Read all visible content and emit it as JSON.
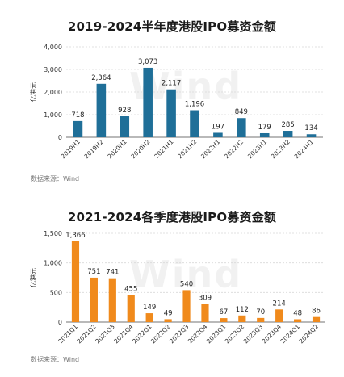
{
  "source_label": "数据来源：Wind",
  "watermark": "Wind",
  "chart_data": [
    {
      "type": "bar",
      "title": "2019-2024半年度港股IPO募资金额",
      "ylabel": "亿港元",
      "xlabel": "",
      "ylim": [
        0,
        4000
      ],
      "yticks": [
        0,
        1000,
        2000,
        3000,
        4000
      ],
      "ytick_labels": [
        "0",
        "1,000",
        "2,000",
        "3,000",
        "4,000"
      ],
      "grid": true,
      "color": "#1f6f98",
      "categories": [
        "2019H1",
        "2019H2",
        "2020H1",
        "2020H2",
        "2021H1",
        "2021H2",
        "2022H1",
        "2022H2",
        "2023H1",
        "2023H2",
        "2024H1"
      ],
      "values": [
        718,
        2364,
        928,
        3073,
        2117,
        1196,
        197,
        849,
        179,
        285,
        134
      ],
      "value_labels": [
        "718",
        "2,364",
        "928",
        "3,073",
        "2,117",
        "1,196",
        "197",
        "849",
        "179",
        "285",
        "134"
      ]
    },
    {
      "type": "bar",
      "title": "2021-2024各季度港股IPO募资金额",
      "ylabel": "亿港元",
      "xlabel": "",
      "ylim": [
        0,
        1500
      ],
      "yticks": [
        0,
        500,
        1000,
        1500
      ],
      "ytick_labels": [
        "0",
        "500",
        "1,000",
        "1,500"
      ],
      "grid": true,
      "color": "#f08a1c",
      "categories": [
        "2021Q1",
        "2021Q2",
        "2021Q3",
        "2021Q4",
        "2022Q1",
        "2022Q2",
        "2022Q3",
        "2022Q4",
        "2023Q1",
        "2023Q2",
        "2023Q3",
        "2023Q4",
        "2024Q1",
        "2024Q2"
      ],
      "values": [
        1366,
        751,
        741,
        455,
        149,
        49,
        540,
        309,
        67,
        112,
        70,
        214,
        48,
        86
      ],
      "value_labels": [
        "1,366",
        "751",
        "741",
        "455",
        "149",
        "49",
        "540",
        "309",
        "67",
        "112",
        "70",
        "214",
        "48",
        "86"
      ]
    }
  ]
}
